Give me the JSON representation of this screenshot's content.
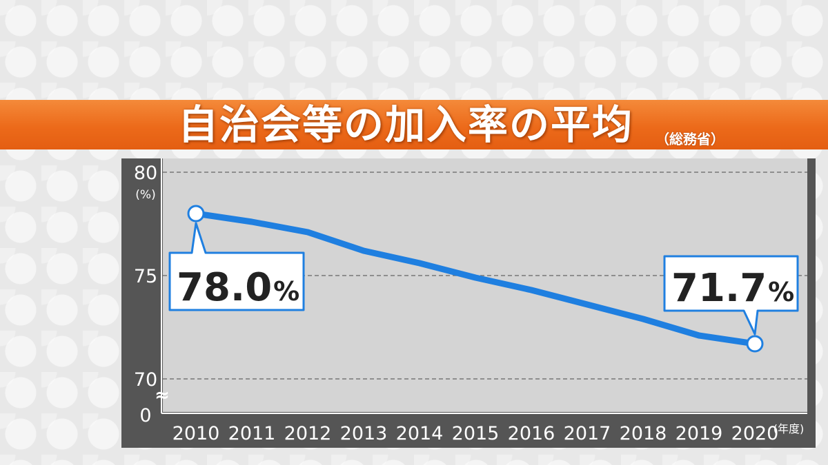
{
  "title": "自治会等の加入率の平均",
  "source": "（総務省）",
  "chart_data": {
    "type": "line",
    "title": "自治会等の加入率の平均",
    "source": "（総務省）",
    "x": [
      "2010",
      "2011",
      "2012",
      "2013",
      "2014",
      "2015",
      "2016",
      "2017",
      "2018",
      "2019",
      "2020"
    ],
    "series": [
      {
        "values": [
          78.0,
          77.6,
          77.1,
          76.2,
          75.6,
          74.9,
          74.3,
          73.6,
          72.9,
          72.1,
          71.7
        ]
      }
    ],
    "x_unit": "(年度)",
    "y_unit": "(%)",
    "y_ticks": [
      "80",
      "75",
      "70",
      "0"
    ],
    "ylim": [
      70,
      80
    ],
    "axis_break": true,
    "axis_break_symbol": "≈",
    "grid": true,
    "grid_style": "dashed",
    "line_color": "#1f7fe0",
    "annotations": [
      {
        "x": "2010",
        "value": "78.0",
        "unit": "%"
      },
      {
        "x": "2020",
        "value": "71.7",
        "unit": "%"
      }
    ]
  }
}
